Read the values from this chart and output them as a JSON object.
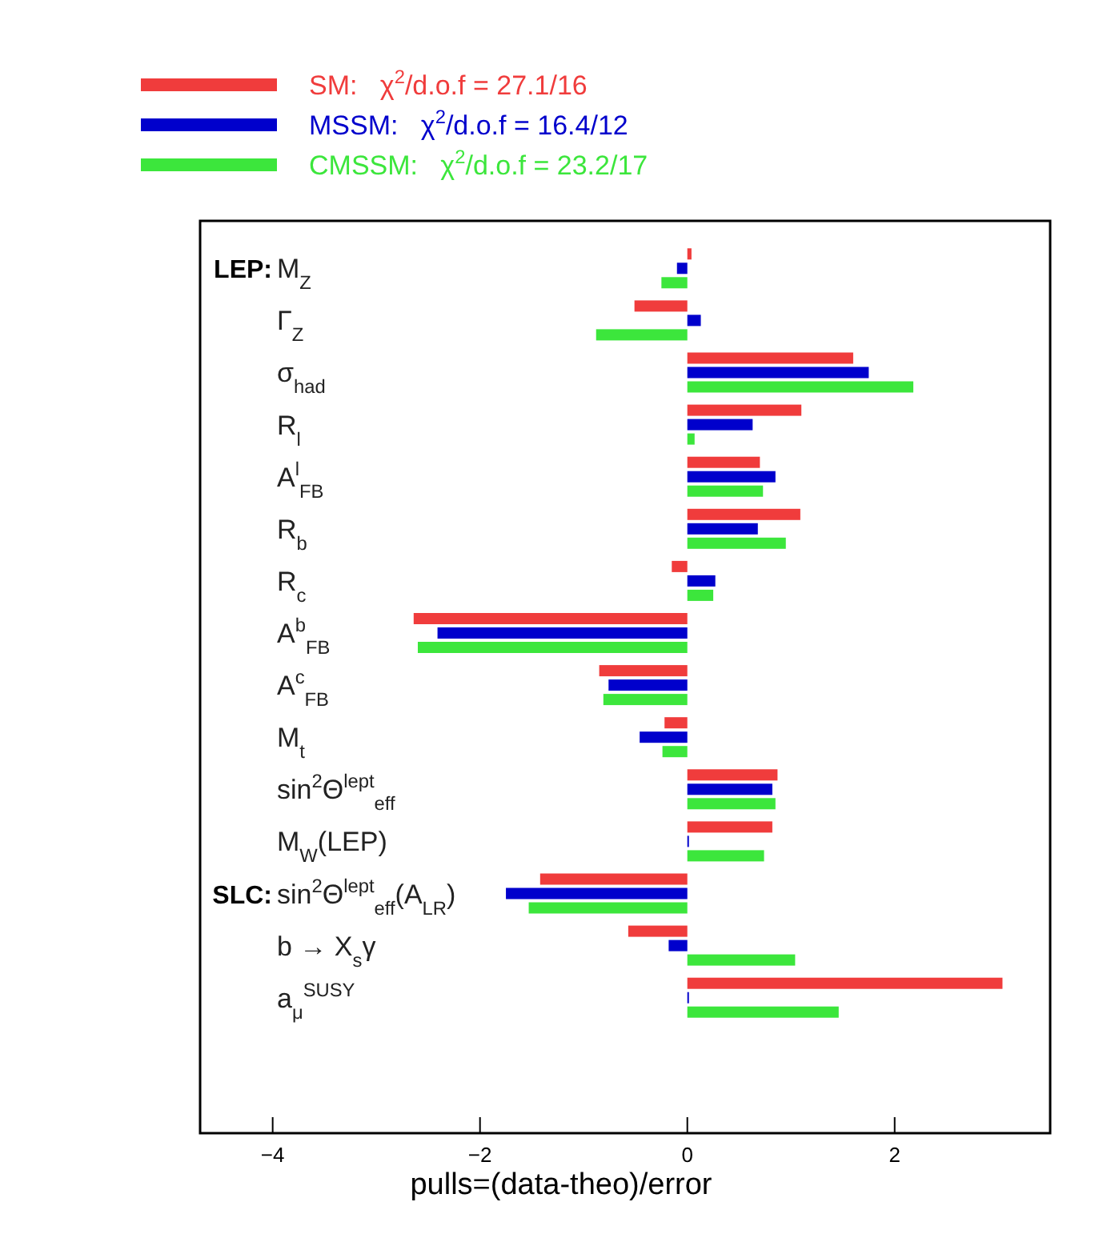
{
  "chart_data": {
    "type": "bar",
    "orientation": "horizontal",
    "xlabel": "pulls=(data-theo)/error",
    "categories": [
      "LEP: M$_{Z}$",
      "Γ$_{Z}$",
      "σ$_{had}$",
      "R$_{l}$",
      "A$^{l}$$_{FB}$",
      "R$_{b}$",
      "R$_{c}$",
      "A$^{b}$$_{FB}$",
      "A$^{c}$$_{FB}$",
      "M$_{t}$",
      "sin$^{2}$Θ$^{lept}$$_{eff}$",
      "M$_{W}$(LEP)",
      "SLC: sin$^{2}$Θ$^{lept}$$_{eff}$(A$_{LR}$)",
      "b → X$_{s}$γ",
      "a$_{μ}$$^{SUSY}$"
    ],
    "series": [
      {
        "name": "SM:   χ$^{2}$/d.o.f = 27.1/16",
        "color": "#f03c3c",
        "values": [
          0.04,
          -0.51,
          1.6,
          1.1,
          0.7,
          1.09,
          -0.15,
          -2.64,
          -0.85,
          -0.22,
          0.87,
          0.82,
          -1.42,
          -0.57,
          3.04
        ]
      },
      {
        "name": "MSSM:   χ$^{2}$/d.o.f = 16.4/12",
        "color": "#0000cc",
        "values": [
          -0.1,
          0.13,
          1.75,
          0.63,
          0.85,
          0.68,
          0.27,
          -2.41,
          -0.76,
          -0.46,
          0.82,
          0.01,
          -1.75,
          -0.18,
          0.01
        ]
      },
      {
        "name": "CMSSM:   χ$^{2}$/d.o.f = 23.2/17",
        "color": "#3ce63c",
        "values": [
          -0.25,
          -0.88,
          2.18,
          0.07,
          0.73,
          0.95,
          0.25,
          -2.6,
          -0.81,
          -0.24,
          0.85,
          0.74,
          -1.53,
          1.04,
          1.46
        ]
      }
    ],
    "xlim": [
      -4.7,
      3.5
    ],
    "xticks": [
      {
        "value": -4,
        "label": "−4"
      },
      {
        "value": -2,
        "label": "−2"
      },
      0,
      2
    ],
    "legend": "top"
  }
}
